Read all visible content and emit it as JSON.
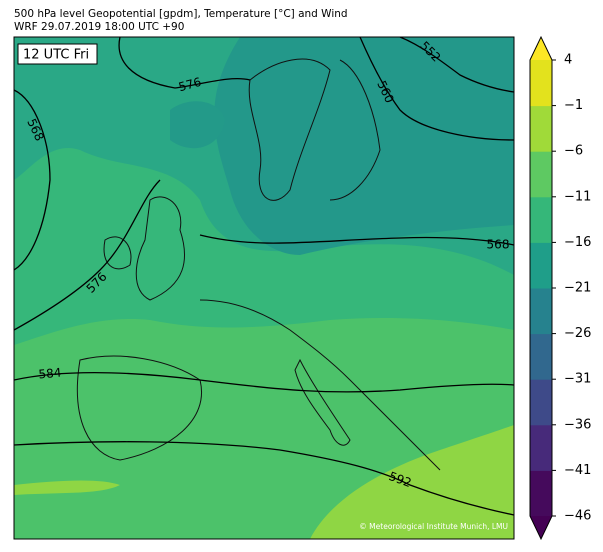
{
  "header": {
    "title": "500 hPa level Geopotential [gpdm], Temperature [°C] and Wind",
    "subtitle": "WRF 29.07.2019 18:00 UTC +90"
  },
  "map": {
    "time_label": "12 UTC Fri",
    "contour_labels": [
      576,
      552,
      560,
      568,
      576,
      568,
      584,
      592
    ],
    "credit": "© Meteorological Institute Munich, LMU"
  },
  "colorbar": {
    "lim": [
      -46,
      4
    ],
    "ticks": [
      {
        "value": 4,
        "label": "4"
      },
      {
        "value": -1,
        "label": "−1"
      },
      {
        "value": -6,
        "label": "−6"
      },
      {
        "value": -11,
        "label": "−11"
      },
      {
        "value": -16,
        "label": "−16"
      },
      {
        "value": -21,
        "label": "−21"
      },
      {
        "value": -26,
        "label": "−26"
      },
      {
        "value": -31,
        "label": "−31"
      },
      {
        "value": -36,
        "label": "−36"
      },
      {
        "value": -41,
        "label": "−41"
      },
      {
        "value": -46,
        "label": "−46"
      }
    ],
    "colors": [
      "#450a5c",
      "#472a7a",
      "#3e4a89",
      "#31688e",
      "#26828e",
      "#1f9e89",
      "#35b779",
      "#5ec962",
      "#a0da39",
      "#e3e21d"
    ],
    "under_color": "#440154",
    "over_color": "#fde725"
  }
}
